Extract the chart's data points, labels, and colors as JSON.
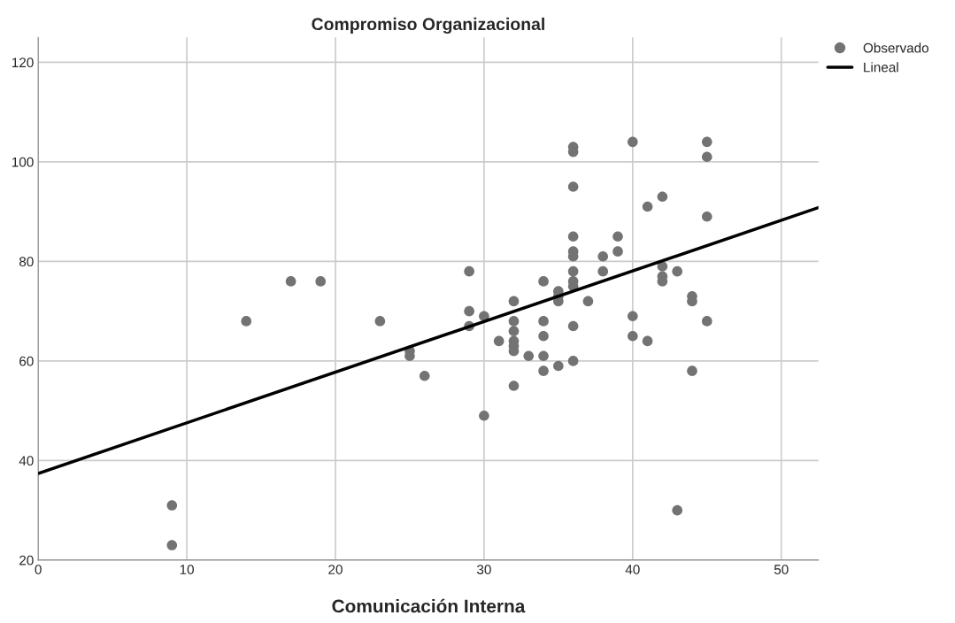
{
  "chart_data": {
    "type": "scatter",
    "title": "Compromiso Organizacional",
    "xlabel": "Comunicación Interna",
    "xlim": [
      0,
      52.5
    ],
    "ylim": [
      20,
      125
    ],
    "xticks": [
      0,
      10,
      20,
      30,
      40,
      50
    ],
    "yticks": [
      20,
      40,
      60,
      80,
      100,
      120
    ],
    "grid": true,
    "legend": "top right",
    "marker": "circle",
    "series": [
      {
        "name": "Observado",
        "color": "#737373",
        "x": [
          9,
          9,
          14,
          17,
          19,
          23,
          25,
          25,
          26,
          29,
          29,
          29,
          30,
          30,
          31,
          32,
          32,
          32,
          32,
          32,
          32,
          32,
          33,
          34,
          34,
          34,
          34,
          34,
          35,
          35,
          35,
          35,
          36,
          36,
          36,
          36,
          36,
          36,
          36,
          36,
          36,
          36,
          36,
          37,
          38,
          38,
          39,
          39,
          40,
          40,
          40,
          41,
          41,
          42,
          42,
          42,
          42,
          43,
          43,
          44,
          44,
          44,
          45,
          45,
          45,
          45
        ],
        "values": [
          31,
          23,
          68,
          76,
          76,
          68,
          62,
          61,
          57,
          78,
          70,
          67,
          69,
          49,
          64,
          72,
          68,
          66,
          64,
          63,
          62,
          55,
          61,
          76,
          68,
          65,
          61,
          58,
          74,
          73,
          72,
          59,
          103,
          102,
          95,
          85,
          82,
          81,
          78,
          76,
          75,
          67,
          60,
          72,
          81,
          78,
          85,
          82,
          104,
          69,
          65,
          91,
          64,
          93,
          79,
          77,
          76,
          78,
          30,
          73,
          72,
          58,
          104,
          101,
          89,
          68
        ]
      },
      {
        "name": "Lineal",
        "type": "line",
        "color": "#000000",
        "marker": "none",
        "x": [
          0,
          52.5
        ],
        "values": [
          37.4,
          90.8
        ]
      }
    ]
  }
}
